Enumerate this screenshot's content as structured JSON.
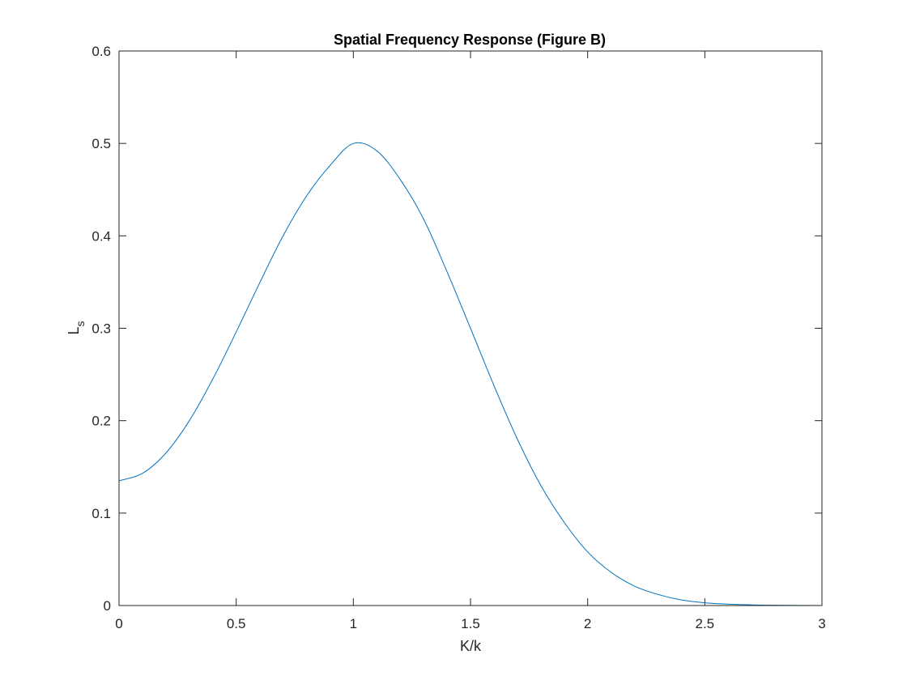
{
  "chart_data": {
    "type": "line",
    "title": "Spatial Frequency Response (Figure B)",
    "xlabel": "K/k",
    "ylabel": "L",
    "ylabel_subscript": "s",
    "xlim": [
      0,
      3
    ],
    "ylim": [
      0,
      0.6
    ],
    "xticks": [
      0,
      0.5,
      1,
      1.5,
      2,
      2.5,
      3
    ],
    "xtick_labels": [
      "0",
      "0.5",
      "1",
      "1.5",
      "2",
      "2.5",
      "3"
    ],
    "yticks": [
      0,
      0.1,
      0.2,
      0.3,
      0.4,
      0.5,
      0.6
    ],
    "ytick_labels": [
      "0",
      "0.1",
      "0.2",
      "0.3",
      "0.4",
      "0.5",
      "0.6"
    ],
    "grid": false,
    "legend": "none",
    "series": [
      {
        "color": "#0072BD",
        "x": [
          0,
          0.1,
          0.2,
          0.3,
          0.4,
          0.5,
          0.6,
          0.7,
          0.8,
          0.9,
          1.0,
          1.1,
          1.2,
          1.3,
          1.4,
          1.5,
          1.6,
          1.7,
          1.8,
          1.9,
          2.0,
          2.1,
          2.2,
          2.3,
          2.4,
          2.5,
          2.6,
          2.7,
          2.8,
          2.9,
          3.0
        ],
        "y": [
          0.135,
          0.143,
          0.165,
          0.2,
          0.245,
          0.296,
          0.349,
          0.4,
          0.443,
          0.476,
          0.5,
          0.492,
          0.461,
          0.418,
          0.361,
          0.3,
          0.238,
          0.18,
          0.13,
          0.09,
          0.058,
          0.036,
          0.021,
          0.012,
          0.006,
          0.003,
          0.0015,
          0.0007,
          0.0003,
          0.0001,
          0.0
        ]
      }
    ]
  }
}
